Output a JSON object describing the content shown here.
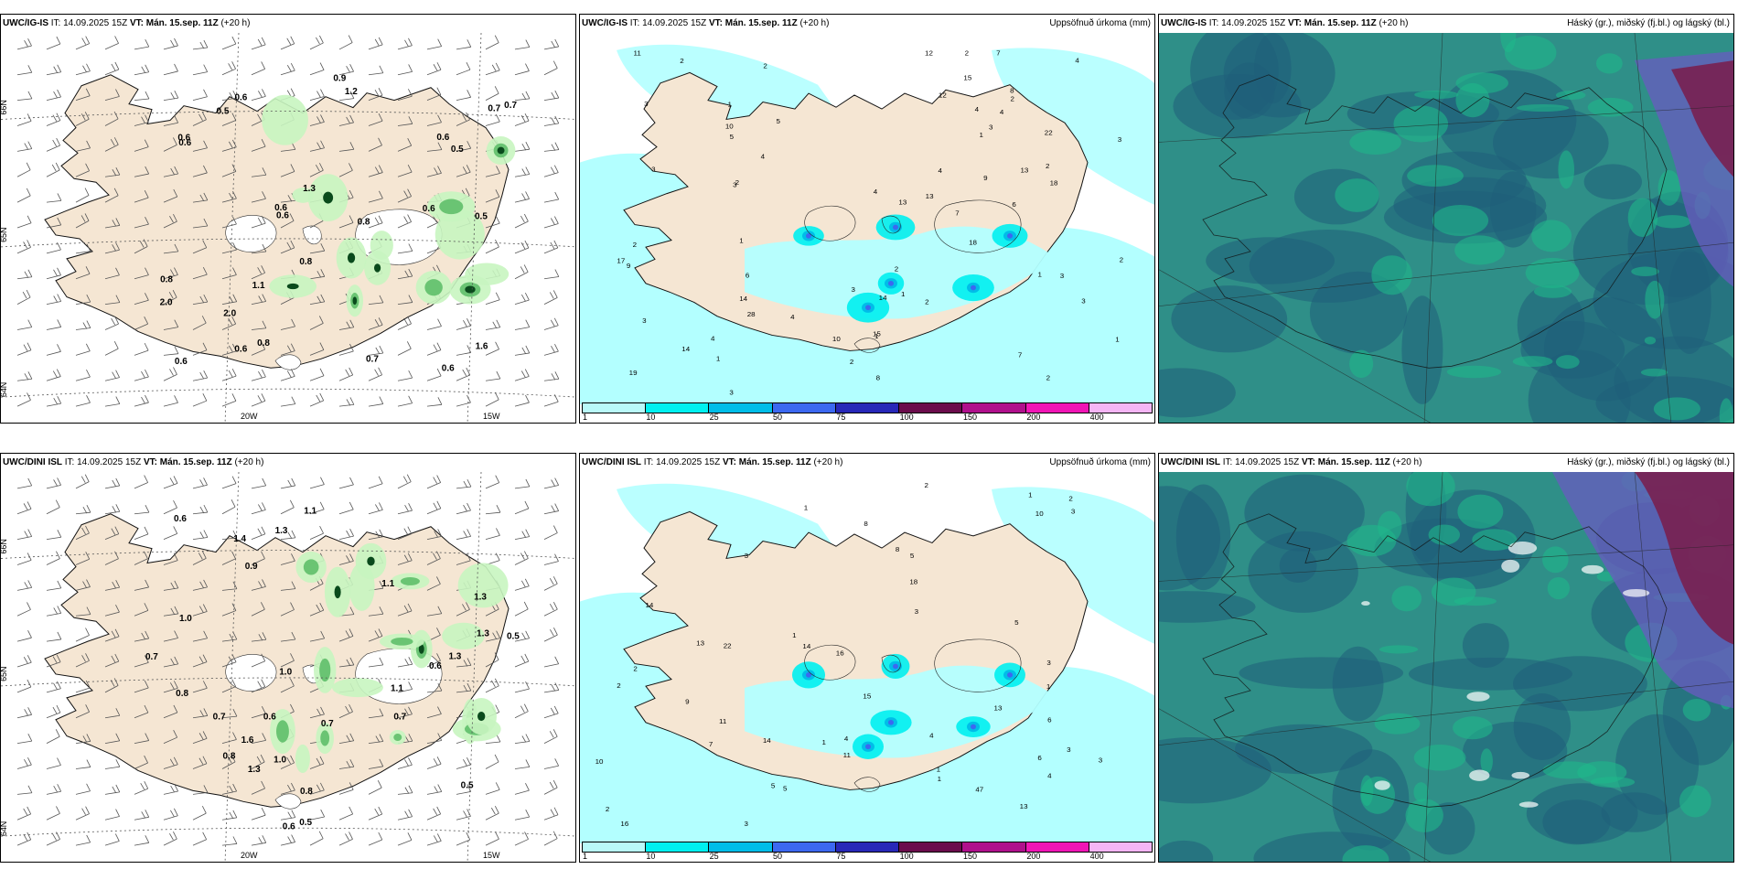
{
  "panels": [
    {
      "id": "p1",
      "model": "UWC/IG-IS",
      "it_label": "IT:",
      "it": "14.09.2025 15Z",
      "vt_label": "VT:",
      "vt": "Mán. 15.sep. 11Z",
      "lead": "(+20 h)",
      "title": "",
      "type": "wind",
      "axis_labels": [
        "66N",
        "65N",
        "64N",
        "20W",
        "15W"
      ],
      "values": [
        "0.5",
        "0.5",
        "0.6",
        "0.6",
        "2.0",
        "0.6",
        "0.8",
        "0.6",
        "1.1",
        "0.7",
        "0.6",
        "0.6",
        "0.6",
        "0.7",
        "0.8",
        "1.2",
        "0.6",
        "0.5",
        "0.9",
        "0.7",
        "0.8",
        "0.6",
        "0.6",
        "1.3",
        "0.8",
        "1.6",
        "2.0"
      ]
    },
    {
      "id": "p2",
      "model": "UWC/IG-IS",
      "it_label": "IT:",
      "it": "14.09.2025 15Z",
      "vt_label": "VT:",
      "vt": "Mán. 15.sep. 11Z",
      "lead": "(+20 h)",
      "title": "Uppsöfnuð úrkoma (mm)",
      "type": "precip",
      "values": [
        "1",
        "1",
        "1",
        "3",
        "1",
        "3",
        "2",
        "2",
        "3",
        "1",
        "1",
        "4",
        "2",
        "3",
        "2",
        "4",
        "2",
        "1",
        "2",
        "2",
        "1",
        "2",
        "3",
        "3",
        "3",
        "2",
        "5",
        "8",
        "9",
        "7",
        "7",
        "12",
        "7",
        "4",
        "6",
        "4",
        "2",
        "17",
        "22",
        "12",
        "10",
        "4",
        "2",
        "4",
        "11",
        "15",
        "28",
        "18",
        "14",
        "13",
        "14",
        "18",
        "19",
        "4",
        "8",
        "10",
        "6",
        "5",
        "3",
        "3",
        "3",
        "2",
        "13",
        "14",
        "15",
        "13",
        "9",
        "4"
      ]
    },
    {
      "id": "p3",
      "model": "UWC/IG-IS",
      "it_label": "IT:",
      "it": "14.09.2025 15Z",
      "vt_label": "VT:",
      "vt": "Mán. 15.sep. 11Z",
      "lead": "(+20 h)",
      "title": "Háský (gr.), miðský (fj.bl.) og lágský (bl.)",
      "type": "cloud"
    },
    {
      "id": "p4",
      "model": "UWC/DINI ISL",
      "it_label": "IT:",
      "it": "14.09.2025 15Z",
      "vt_label": "VT:",
      "vt": "Mán. 15.sep. 11Z",
      "lead": "(+20 h)",
      "title": "",
      "type": "wind",
      "axis_labels": [
        "66N",
        "65N",
        "64N",
        "20W",
        "15W"
      ],
      "values": [
        "0.6",
        "1.4",
        "0.7",
        "1.0",
        "0.7",
        "1.3",
        "1.3",
        "1.0",
        "1.1",
        "0.8",
        "0.8",
        "0.5",
        "0.6",
        "0.5",
        "1.3",
        "0.7",
        "1.6",
        "1.3",
        "1.1",
        "1.0",
        "0.6",
        "0.6",
        "0.9",
        "1.1",
        "0.5",
        "0.8",
        "0.7",
        "1.3"
      ]
    },
    {
      "id": "p5",
      "model": "UWC/DINI ISL",
      "it_label": "IT:",
      "it": "14.09.2025 15Z",
      "vt_label": "VT:",
      "vt": "Mán. 15.sep. 11Z",
      "lead": "(+20 h)",
      "title": "Uppsöfnuð úrkoma (mm)",
      "type": "precip",
      "values": [
        "1",
        "1",
        "1",
        "1",
        "1",
        "4",
        "3",
        "2",
        "1",
        "2",
        "3",
        "3",
        "4",
        "5",
        "8",
        "3",
        "5",
        "5",
        "2",
        "3",
        "2",
        "10",
        "16",
        "13",
        "14",
        "8",
        "16",
        "14",
        "14",
        "13",
        "11",
        "11",
        "13",
        "10",
        "18",
        "22",
        "15",
        "47",
        "4",
        "6",
        "3",
        "7",
        "9",
        "3",
        "5",
        "6",
        "2",
        "1"
      ]
    },
    {
      "id": "p6",
      "model": "UWC/DINI ISL",
      "it_label": "IT:",
      "it": "14.09.2025 15Z",
      "vt_label": "VT:",
      "vt": "Mán. 15.sep. 11Z",
      "lead": "(+20 h)",
      "title": "Háský (gr.), miðský (fj.bl.) og lágský (bl.)",
      "type": "cloud"
    }
  ],
  "colorbar": {
    "labels": [
      "1",
      "10",
      "25",
      "50",
      "75",
      "100",
      "150",
      "200",
      "400"
    ],
    "colors": [
      "#b9f9f9",
      "#00f0f0",
      "#00bde8",
      "#3c68f0",
      "#2828b8",
      "#6b0c4c",
      "#b0108c",
      "#f015b5",
      "#f5b5f5"
    ]
  },
  "colors": {
    "land": "#f5e6d3",
    "precip_light": "#b3ffff",
    "wind_green_light": "#c8f5c0",
    "wind_green_dark": "#0a4a1c",
    "cloud_base": "#2f8f88",
    "cloud_low": "#1f5f7a",
    "cloud_mid": "#20b88a",
    "cloud_high": "#7a1c4a",
    "cloud_violet": "#6a5bc0"
  }
}
